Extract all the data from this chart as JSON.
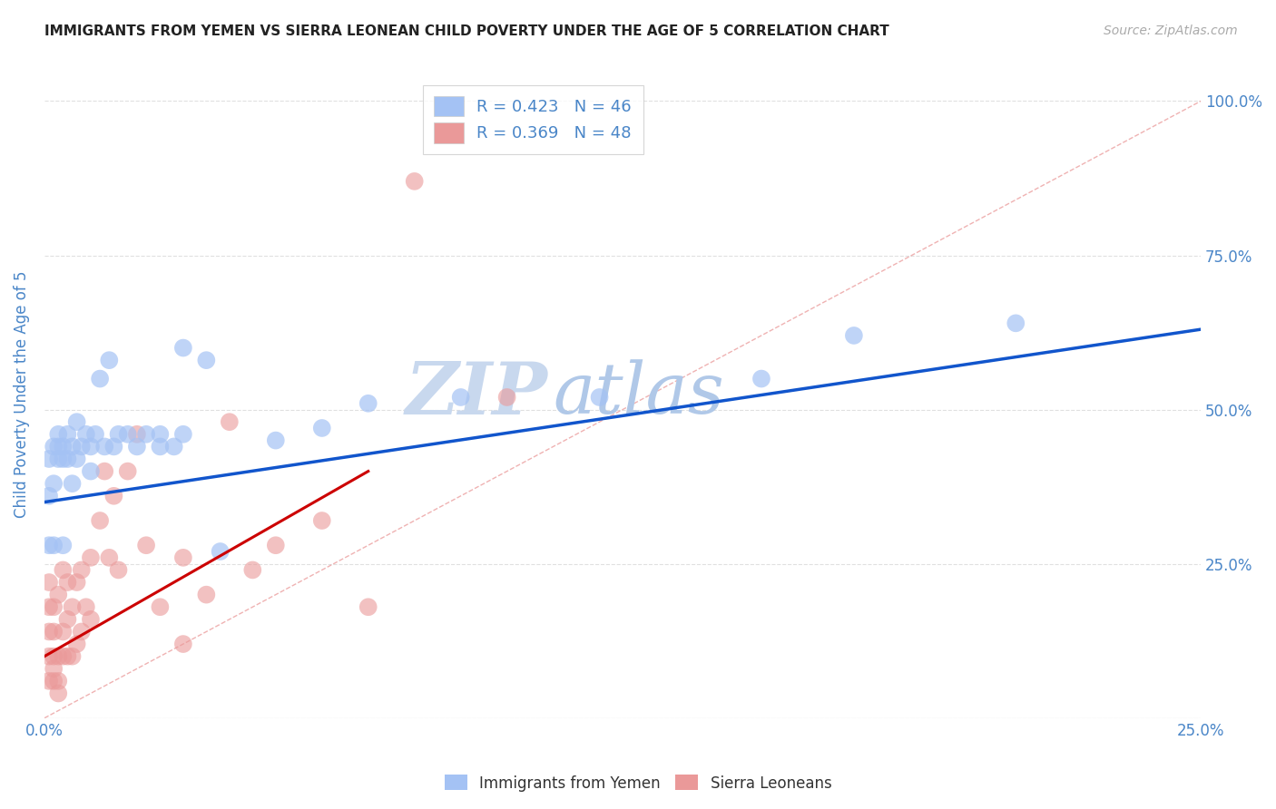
{
  "title": "IMMIGRANTS FROM YEMEN VS SIERRA LEONEAN CHILD POVERTY UNDER THE AGE OF 5 CORRELATION CHART",
  "source": "Source: ZipAtlas.com",
  "ylabel": "Child Poverty Under the Age of 5",
  "xlim": [
    0.0,
    0.25
  ],
  "ylim": [
    0.0,
    1.05
  ],
  "yticks": [
    0.0,
    0.25,
    0.5,
    0.75,
    1.0
  ],
  "ytick_labels": [
    "",
    "25.0%",
    "50.0%",
    "75.0%",
    "100.0%"
  ],
  "xticks": [
    0.0,
    0.05,
    0.1,
    0.15,
    0.2,
    0.25
  ],
  "xtick_labels": [
    "0.0%",
    "",
    "",
    "",
    "",
    "25.0%"
  ],
  "legend_label1": "Immigrants from Yemen",
  "legend_label2": "Sierra Leoneans",
  "blue_color": "#a4c2f4",
  "pink_color": "#ea9999",
  "blue_line_color": "#1155cc",
  "pink_line_color": "#cc0000",
  "diag_line_color": "#e06666",
  "title_color": "#222222",
  "source_color": "#aaaaaa",
  "axis_color": "#4a86c8",
  "watermark_zip_color": "#c9d9f0",
  "watermark_atlas_color": "#b8cfe8",
  "blue_scatter_x": [
    0.001,
    0.001,
    0.002,
    0.002,
    0.003,
    0.003,
    0.003,
    0.004,
    0.004,
    0.005,
    0.005,
    0.006,
    0.006,
    0.007,
    0.007,
    0.008,
    0.009,
    0.01,
    0.01,
    0.011,
    0.012,
    0.013,
    0.014,
    0.015,
    0.016,
    0.018,
    0.02,
    0.022,
    0.025,
    0.025,
    0.028,
    0.03,
    0.03,
    0.035,
    0.038,
    0.05,
    0.06,
    0.07,
    0.09,
    0.12,
    0.155,
    0.175,
    0.21,
    0.001,
    0.002,
    0.004
  ],
  "blue_scatter_y": [
    0.36,
    0.42,
    0.44,
    0.38,
    0.42,
    0.44,
    0.46,
    0.42,
    0.44,
    0.42,
    0.46,
    0.38,
    0.44,
    0.42,
    0.48,
    0.44,
    0.46,
    0.4,
    0.44,
    0.46,
    0.55,
    0.44,
    0.58,
    0.44,
    0.46,
    0.46,
    0.44,
    0.46,
    0.44,
    0.46,
    0.44,
    0.46,
    0.6,
    0.58,
    0.27,
    0.45,
    0.47,
    0.51,
    0.52,
    0.52,
    0.55,
    0.62,
    0.64,
    0.28,
    0.28,
    0.28
  ],
  "pink_scatter_x": [
    0.001,
    0.001,
    0.001,
    0.001,
    0.001,
    0.002,
    0.002,
    0.002,
    0.002,
    0.003,
    0.003,
    0.003,
    0.004,
    0.004,
    0.004,
    0.005,
    0.005,
    0.005,
    0.006,
    0.006,
    0.007,
    0.007,
    0.008,
    0.008,
    0.009,
    0.01,
    0.01,
    0.012,
    0.013,
    0.014,
    0.015,
    0.016,
    0.018,
    0.02,
    0.022,
    0.025,
    0.03,
    0.035,
    0.04,
    0.045,
    0.05,
    0.06,
    0.07,
    0.08,
    0.1,
    0.03,
    0.002,
    0.003
  ],
  "pink_scatter_y": [
    0.06,
    0.1,
    0.14,
    0.18,
    0.22,
    0.06,
    0.1,
    0.14,
    0.18,
    0.06,
    0.1,
    0.2,
    0.1,
    0.14,
    0.24,
    0.1,
    0.16,
    0.22,
    0.1,
    0.18,
    0.12,
    0.22,
    0.14,
    0.24,
    0.18,
    0.16,
    0.26,
    0.32,
    0.4,
    0.26,
    0.36,
    0.24,
    0.4,
    0.46,
    0.28,
    0.18,
    0.26,
    0.2,
    0.48,
    0.24,
    0.28,
    0.32,
    0.18,
    0.87,
    0.52,
    0.12,
    0.08,
    0.04
  ],
  "blue_line_x": [
    0.0,
    0.25
  ],
  "blue_line_y": [
    0.35,
    0.63
  ],
  "pink_line_x": [
    0.0,
    0.07
  ],
  "pink_line_y": [
    0.1,
    0.4
  ],
  "diag_line_x": [
    0.0,
    0.25
  ],
  "diag_line_y": [
    0.0,
    1.0
  ]
}
